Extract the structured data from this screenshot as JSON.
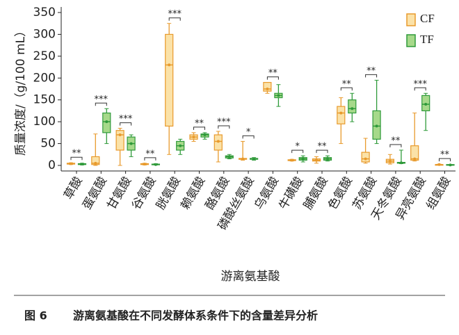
{
  "chart_data": {
    "type": "box",
    "y_label": "质量浓度/（g/100 mL）",
    "x_label": "游离氨基酸",
    "figure_label": "图 6",
    "caption": "游离氨基酸在不同发酵体系条件下的含量差异分析",
    "categories": [
      "草酸",
      "蛋氨酸",
      "甘氨酸",
      "谷氨酸",
      "胱氨酸",
      "赖氨酸",
      "酪氨酸",
      "磷酸丝氨酸",
      "乌氨酸",
      "牛磺酸",
      "脯氨酸",
      "色氨酸",
      "苏氨酸",
      "天冬氨酸",
      "异亮氨酸",
      "组氨酸"
    ],
    "series": [
      {
        "name": "CF",
        "color": "#e89a2c",
        "fill": "#fbe2a8",
        "min": [
          2,
          0,
          0,
          1,
          25,
          55,
          8,
          12,
          165,
          10,
          5,
          50,
          5,
          3,
          10,
          1
        ],
        "q1": [
          3,
          2,
          35,
          2,
          90,
          60,
          35,
          14,
          170,
          11,
          10,
          95,
          8,
          6,
          12,
          1
        ],
        "median": [
          4,
          5,
          70,
          3,
          230,
          65,
          55,
          15,
          175,
          12,
          12,
          120,
          15,
          10,
          15,
          2
        ],
        "q3": [
          5,
          20,
          80,
          4,
          300,
          70,
          70,
          16,
          190,
          13,
          15,
          135,
          30,
          14,
          45,
          2
        ],
        "max": [
          6,
          72,
          85,
          5,
          325,
          75,
          78,
          55,
          190,
          14,
          20,
          155,
          62,
          25,
          120,
          3
        ]
      },
      {
        "name": "TF",
        "color": "#2f9a3a",
        "fill": "#a6d98a",
        "min": [
          1,
          50,
          20,
          1,
          25,
          60,
          15,
          12,
          135,
          8,
          10,
          100,
          50,
          4,
          80,
          0
        ],
        "q1": [
          2,
          75,
          35,
          2,
          35,
          65,
          17,
          14,
          155,
          12,
          12,
          120,
          60,
          5,
          125,
          1
        ],
        "median": [
          3,
          100,
          50,
          2,
          45,
          70,
          20,
          15,
          160,
          15,
          15,
          130,
          90,
          6,
          140,
          1
        ],
        "q3": [
          4,
          120,
          65,
          3,
          55,
          72,
          22,
          16,
          165,
          18,
          18,
          150,
          125,
          7,
          160,
          2
        ],
        "max": [
          5,
          130,
          70,
          4,
          60,
          75,
          25,
          18,
          185,
          22,
          22,
          165,
          195,
          35,
          165,
          2
        ]
      }
    ],
    "annotations": [
      "**",
      "***",
      "***",
      "**",
      "***",
      "**",
      "***",
      "*",
      "**",
      "*",
      "**",
      "**",
      "**",
      "**",
      "***",
      "**"
    ],
    "ylim": [
      0,
      350
    ],
    "yticks": [
      0,
      50,
      100,
      150,
      200,
      250,
      300,
      350
    ]
  }
}
